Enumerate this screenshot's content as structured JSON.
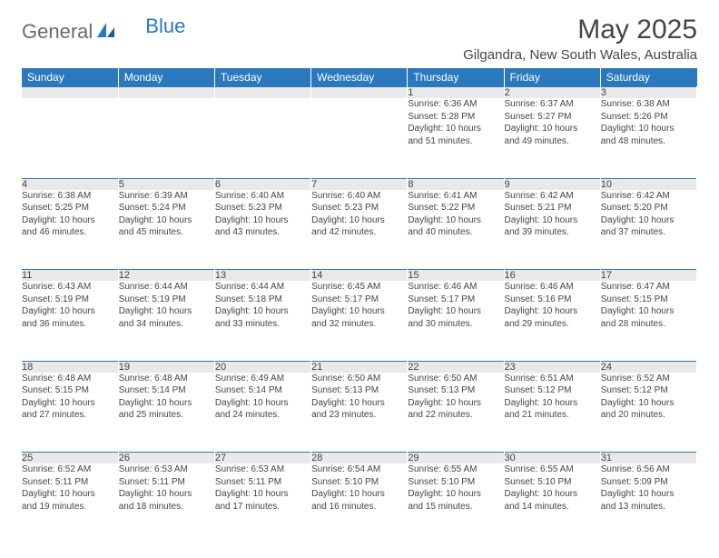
{
  "brand": {
    "general": "General",
    "blue": "Blue"
  },
  "title": "May 2025",
  "location": "Gilgandra, New South Wales, Australia",
  "colors": {
    "header_bg": "#2a78bd",
    "header_fg": "#ffffff",
    "daynum_bg": "#e9e9e9",
    "text": "#454545",
    "rule": "#2a78bd"
  },
  "weekdays": [
    "Sunday",
    "Monday",
    "Tuesday",
    "Wednesday",
    "Thursday",
    "Friday",
    "Saturday"
  ],
  "weeks": [
    [
      null,
      null,
      null,
      null,
      {
        "n": "1",
        "sunrise": "6:36 AM",
        "sunset": "5:28 PM",
        "dl_h": 10,
        "dl_m": 51
      },
      {
        "n": "2",
        "sunrise": "6:37 AM",
        "sunset": "5:27 PM",
        "dl_h": 10,
        "dl_m": 49
      },
      {
        "n": "3",
        "sunrise": "6:38 AM",
        "sunset": "5:26 PM",
        "dl_h": 10,
        "dl_m": 48
      }
    ],
    [
      {
        "n": "4",
        "sunrise": "6:38 AM",
        "sunset": "5:25 PM",
        "dl_h": 10,
        "dl_m": 46
      },
      {
        "n": "5",
        "sunrise": "6:39 AM",
        "sunset": "5:24 PM",
        "dl_h": 10,
        "dl_m": 45
      },
      {
        "n": "6",
        "sunrise": "6:40 AM",
        "sunset": "5:23 PM",
        "dl_h": 10,
        "dl_m": 43
      },
      {
        "n": "7",
        "sunrise": "6:40 AM",
        "sunset": "5:23 PM",
        "dl_h": 10,
        "dl_m": 42
      },
      {
        "n": "8",
        "sunrise": "6:41 AM",
        "sunset": "5:22 PM",
        "dl_h": 10,
        "dl_m": 40
      },
      {
        "n": "9",
        "sunrise": "6:42 AM",
        "sunset": "5:21 PM",
        "dl_h": 10,
        "dl_m": 39
      },
      {
        "n": "10",
        "sunrise": "6:42 AM",
        "sunset": "5:20 PM",
        "dl_h": 10,
        "dl_m": 37
      }
    ],
    [
      {
        "n": "11",
        "sunrise": "6:43 AM",
        "sunset": "5:19 PM",
        "dl_h": 10,
        "dl_m": 36
      },
      {
        "n": "12",
        "sunrise": "6:44 AM",
        "sunset": "5:19 PM",
        "dl_h": 10,
        "dl_m": 34
      },
      {
        "n": "13",
        "sunrise": "6:44 AM",
        "sunset": "5:18 PM",
        "dl_h": 10,
        "dl_m": 33
      },
      {
        "n": "14",
        "sunrise": "6:45 AM",
        "sunset": "5:17 PM",
        "dl_h": 10,
        "dl_m": 32
      },
      {
        "n": "15",
        "sunrise": "6:46 AM",
        "sunset": "5:17 PM",
        "dl_h": 10,
        "dl_m": 30
      },
      {
        "n": "16",
        "sunrise": "6:46 AM",
        "sunset": "5:16 PM",
        "dl_h": 10,
        "dl_m": 29
      },
      {
        "n": "17",
        "sunrise": "6:47 AM",
        "sunset": "5:15 PM",
        "dl_h": 10,
        "dl_m": 28
      }
    ],
    [
      {
        "n": "18",
        "sunrise": "6:48 AM",
        "sunset": "5:15 PM",
        "dl_h": 10,
        "dl_m": 27
      },
      {
        "n": "19",
        "sunrise": "6:48 AM",
        "sunset": "5:14 PM",
        "dl_h": 10,
        "dl_m": 25
      },
      {
        "n": "20",
        "sunrise": "6:49 AM",
        "sunset": "5:14 PM",
        "dl_h": 10,
        "dl_m": 24
      },
      {
        "n": "21",
        "sunrise": "6:50 AM",
        "sunset": "5:13 PM",
        "dl_h": 10,
        "dl_m": 23
      },
      {
        "n": "22",
        "sunrise": "6:50 AM",
        "sunset": "5:13 PM",
        "dl_h": 10,
        "dl_m": 22
      },
      {
        "n": "23",
        "sunrise": "6:51 AM",
        "sunset": "5:12 PM",
        "dl_h": 10,
        "dl_m": 21
      },
      {
        "n": "24",
        "sunrise": "6:52 AM",
        "sunset": "5:12 PM",
        "dl_h": 10,
        "dl_m": 20
      }
    ],
    [
      {
        "n": "25",
        "sunrise": "6:52 AM",
        "sunset": "5:11 PM",
        "dl_h": 10,
        "dl_m": 19
      },
      {
        "n": "26",
        "sunrise": "6:53 AM",
        "sunset": "5:11 PM",
        "dl_h": 10,
        "dl_m": 18
      },
      {
        "n": "27",
        "sunrise": "6:53 AM",
        "sunset": "5:11 PM",
        "dl_h": 10,
        "dl_m": 17
      },
      {
        "n": "28",
        "sunrise": "6:54 AM",
        "sunset": "5:10 PM",
        "dl_h": 10,
        "dl_m": 16
      },
      {
        "n": "29",
        "sunrise": "6:55 AM",
        "sunset": "5:10 PM",
        "dl_h": 10,
        "dl_m": 15
      },
      {
        "n": "30",
        "sunrise": "6:55 AM",
        "sunset": "5:10 PM",
        "dl_h": 10,
        "dl_m": 14
      },
      {
        "n": "31",
        "sunrise": "6:56 AM",
        "sunset": "5:09 PM",
        "dl_h": 10,
        "dl_m": 13
      }
    ]
  ],
  "labels": {
    "sunrise": "Sunrise:",
    "sunset": "Sunset:",
    "daylight": "Daylight:",
    "hours_word": "hours",
    "and_word": "and",
    "minutes_word": "minutes."
  }
}
